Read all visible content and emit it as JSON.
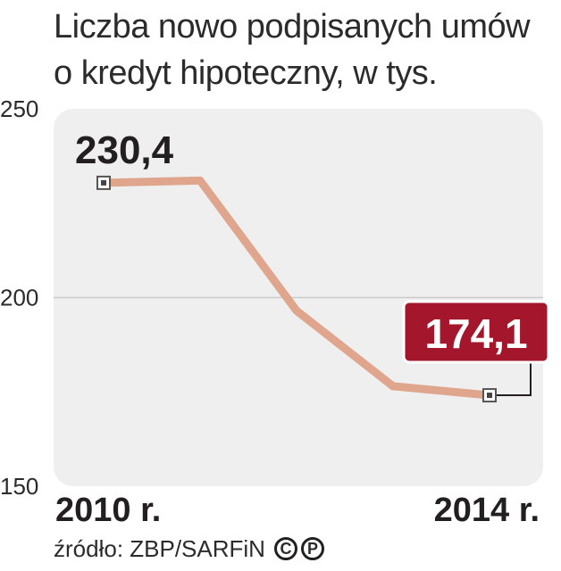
{
  "chart_data": {
    "type": "line",
    "title": "Liczba nowo podpisanych umów o kredyt hipoteczny, w tys.",
    "title_lines": [
      "Liczba nowo podpisanych umów",
      "o kredyt hipoteczny, w tys."
    ],
    "x": [
      2010,
      2011,
      2012,
      2013,
      2014
    ],
    "x_tick_labels": [
      "2010 r.",
      "2014 r."
    ],
    "values": [
      230.4,
      231,
      196.5,
      176.5,
      174.1
    ],
    "ylim": [
      150,
      250
    ],
    "y_ticks": [
      "250",
      "200",
      "150"
    ],
    "data_labels": {
      "first": "230,4",
      "last": "174,1"
    },
    "grid": true,
    "line_color": "#e0a58d",
    "highlight_color": "#a3162b",
    "plot_background": "#efefef"
  },
  "source": {
    "text": "źródło: ZBP/SARFiN",
    "badges": [
      "C",
      "P"
    ]
  }
}
